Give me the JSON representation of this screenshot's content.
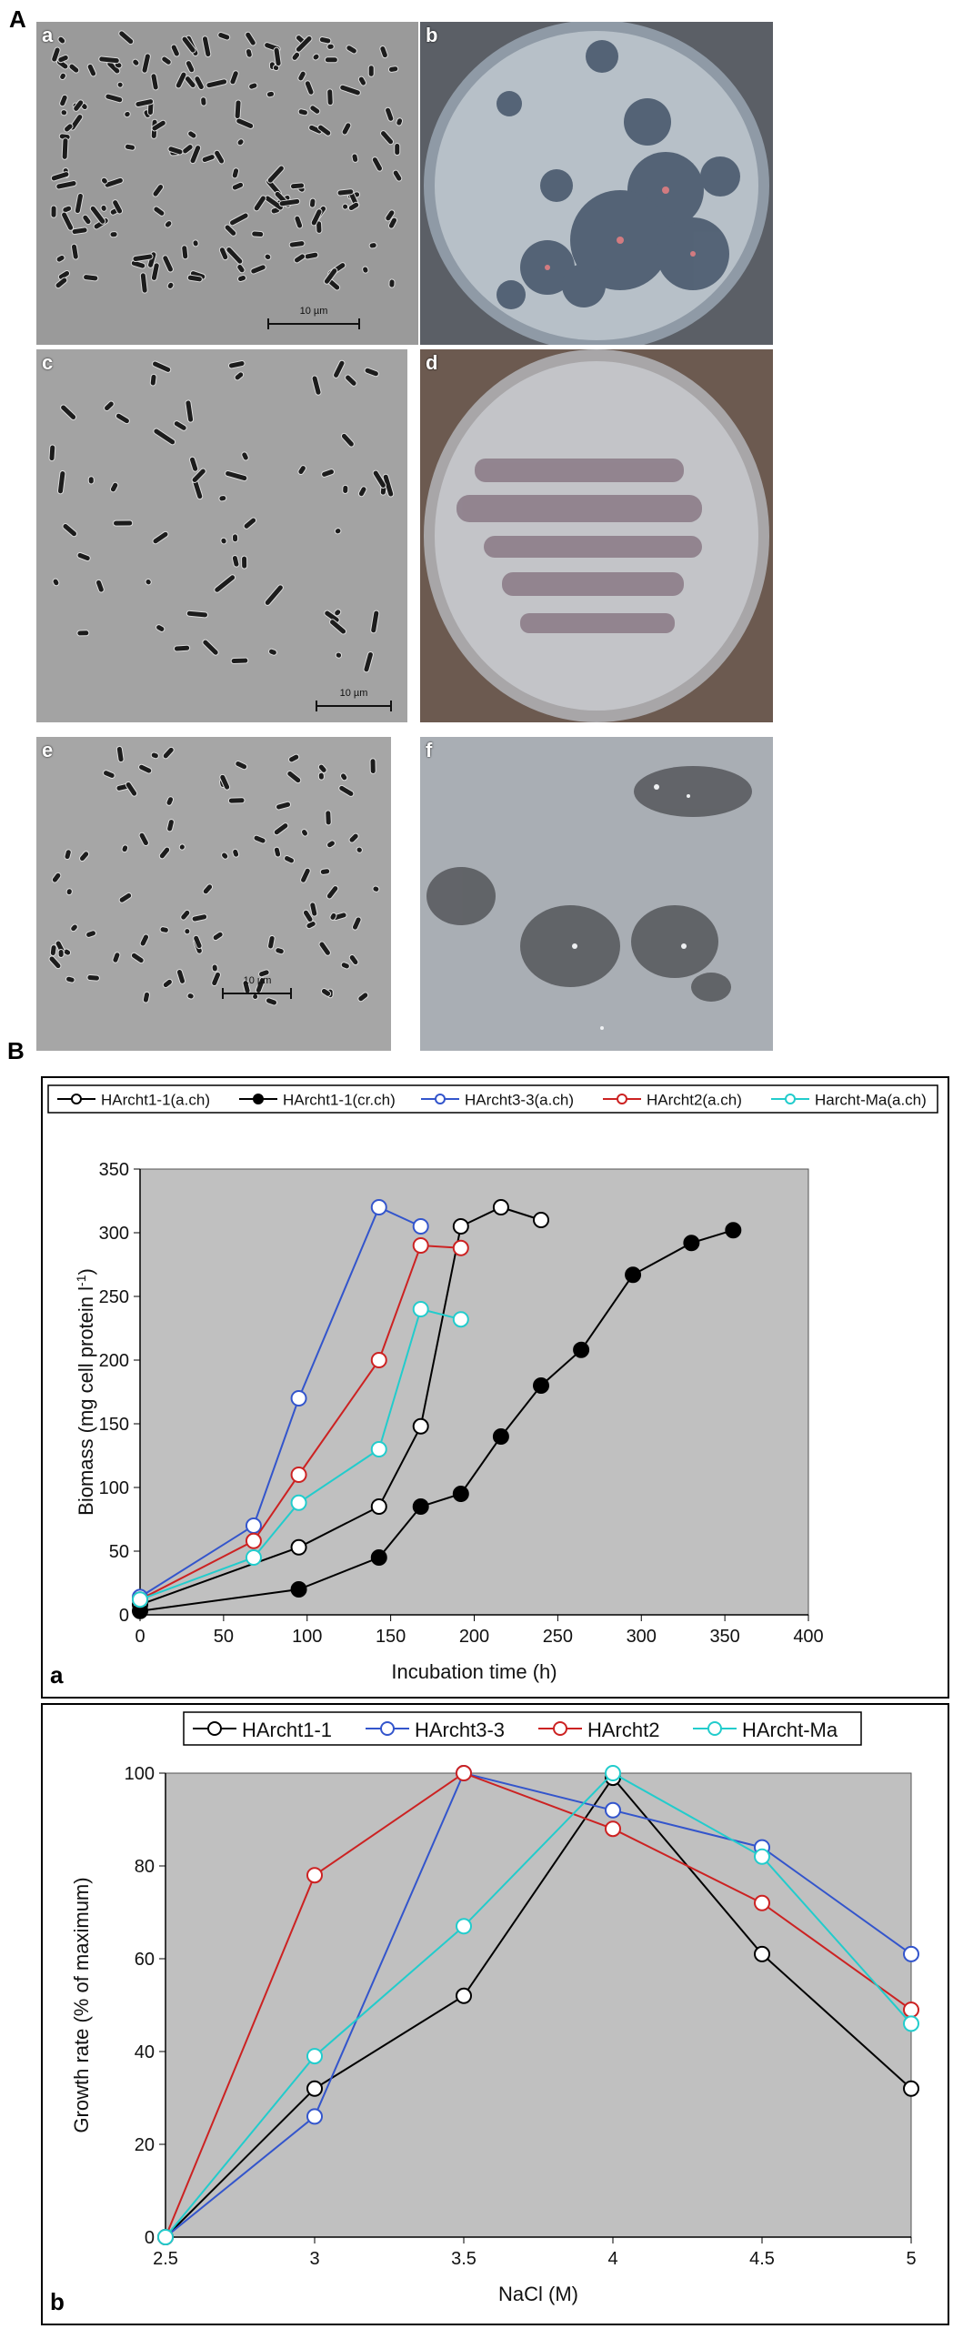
{
  "section_a_label": "A",
  "section_b_label": "B",
  "panels": [
    {
      "letter": "a",
      "kind": "micrograph",
      "scale": "10 µm"
    },
    {
      "letter": "b",
      "kind": "plate"
    },
    {
      "letter": "c",
      "kind": "micrograph",
      "scale": "10 µm"
    },
    {
      "letter": "d",
      "kind": "plate"
    },
    {
      "letter": "e",
      "kind": "micrograph",
      "scale": "10 µm"
    },
    {
      "letter": "f",
      "kind": "plate"
    }
  ],
  "chart_data": [
    {
      "type": "line",
      "panel_letter": "a",
      "xlabel": "Incubation time (h)",
      "ylabel": "Biomass (mg cell protein l",
      "ylabel_sup": "-1",
      "ylabel_close": ")",
      "xlim": [
        0,
        400
      ],
      "ylim": [
        0,
        350
      ],
      "xticks": [
        0,
        50,
        100,
        150,
        200,
        250,
        300,
        350,
        400
      ],
      "yticks": [
        0,
        50,
        100,
        150,
        200,
        250,
        300,
        350
      ],
      "legend_position": "top",
      "grid": false,
      "series": [
        {
          "name": "HArcht1-1(a.ch)",
          "color": "#000000",
          "marker": "open",
          "x": [
            0,
            95,
            143,
            168,
            192,
            216,
            240
          ],
          "y": [
            8,
            53,
            85,
            148,
            305,
            320,
            310
          ]
        },
        {
          "name": "HArcht1-1(cr.ch)",
          "color": "#000000",
          "marker": "filled",
          "x": [
            0,
            95,
            143,
            168,
            192,
            216,
            240,
            264,
            295,
            330,
            355
          ],
          "y": [
            3,
            20,
            45,
            85,
            95,
            140,
            180,
            208,
            267,
            292,
            302
          ]
        },
        {
          "name": "HArcht3-3(a.ch)",
          "color": "#3355cc",
          "marker": "open",
          "x": [
            0,
            68,
            95,
            143,
            168
          ],
          "y": [
            14,
            70,
            170,
            320,
            305
          ]
        },
        {
          "name": "HArcht2(a.ch)",
          "color": "#cc2222",
          "marker": "open",
          "x": [
            0,
            68,
            95,
            143,
            168,
            192
          ],
          "y": [
            12,
            58,
            110,
            200,
            290,
            288
          ]
        },
        {
          "name": "Harcht-Ma(a.ch)",
          "color": "#22cccc",
          "marker": "open",
          "x": [
            0,
            68,
            95,
            143,
            168,
            192
          ],
          "y": [
            12,
            45,
            88,
            130,
            240,
            232
          ]
        }
      ]
    },
    {
      "type": "line",
      "panel_letter": "b",
      "xlabel": "NaCl (M)",
      "ylabel": "Growth rate (% of maximum)",
      "xlim": [
        2.5,
        5
      ],
      "ylim": [
        0,
        100
      ],
      "xticks": [
        2.5,
        3,
        3.5,
        4,
        4.5,
        5
      ],
      "yticks": [
        0,
        20,
        40,
        60,
        80,
        100
      ],
      "legend_position": "top",
      "grid": false,
      "series": [
        {
          "name": "HArcht1-1",
          "color": "#000000",
          "marker": "open",
          "x": [
            2.5,
            3,
            3.5,
            4,
            4.5,
            5
          ],
          "y": [
            0,
            32,
            52,
            99,
            61,
            32
          ]
        },
        {
          "name": "HArcht3-3",
          "color": "#3355cc",
          "marker": "open",
          "x": [
            2.5,
            3,
            3.5,
            4,
            4.5,
            5
          ],
          "y": [
            0,
            26,
            100,
            92,
            84,
            61
          ]
        },
        {
          "name": "HArcht2",
          "color": "#cc2222",
          "marker": "open",
          "x": [
            2.5,
            3,
            3.5,
            4,
            4.5,
            5
          ],
          "y": [
            0,
            78,
            100,
            88,
            72,
            49
          ]
        },
        {
          "name": "HArcht-Ma",
          "color": "#22cccc",
          "marker": "open",
          "x": [
            2.5,
            3,
            3.5,
            4,
            4.5,
            5
          ],
          "y": [
            0,
            39,
            67,
            100,
            82,
            46
          ]
        }
      ]
    }
  ]
}
